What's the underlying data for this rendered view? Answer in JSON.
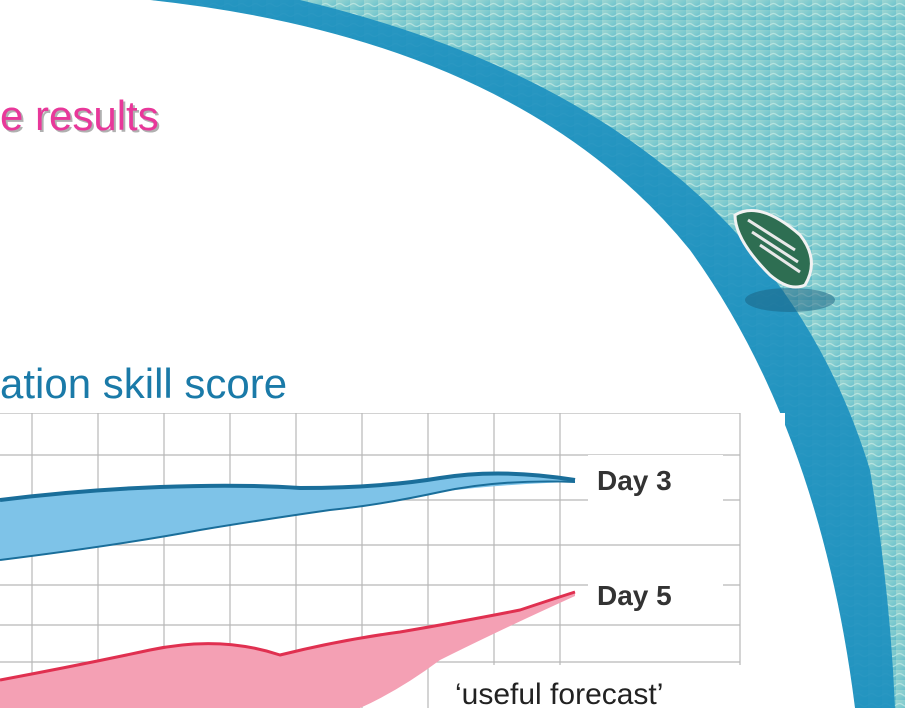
{
  "slide": {
    "title": "e results",
    "subtitle": "ation skill score",
    "chart": {
      "labels": [
        "Day 3",
        "Day 5"
      ],
      "annotation": "‘useful forecast’"
    }
  }
}
